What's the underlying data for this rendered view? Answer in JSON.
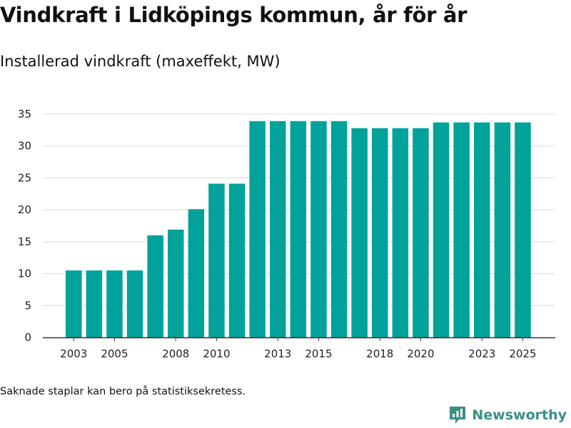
{
  "title": "Vindkraft i Lidköpings kommun, år för år",
  "subtitle": "Installerad vindkraft (maxeffekt, MW)",
  "footnote": "Saknade staplar kan bero på statistiksekretess.",
  "brand": {
    "name": "Newsworthy",
    "icon": "newsworthy-logo-icon",
    "color": "#3a8f86"
  },
  "colors": {
    "bar": "#00a29a",
    "grid": "#d9d9d9",
    "axis": "#333333"
  },
  "chart_data": {
    "type": "bar",
    "title": "Vindkraft i Lidköpings kommun, år för år",
    "subtitle": "Installerad vindkraft (maxeffekt, MW)",
    "xlabel": "",
    "ylabel": "",
    "ylim": [
      0,
      35
    ],
    "yticks": [
      0,
      5,
      10,
      15,
      20,
      25,
      30,
      35
    ],
    "grid": true,
    "categories": [
      "2003",
      "2004",
      "2005",
      "2006",
      "2007",
      "2008",
      "2009",
      "2010",
      "2011",
      "2012",
      "2013",
      "2014",
      "2015",
      "2016",
      "2017",
      "2018",
      "2019",
      "2020",
      "2021",
      "2022",
      "2023",
      "2024",
      "2025"
    ],
    "xtick_labels": [
      "2003",
      "2005",
      "2008",
      "2010",
      "2013",
      "2015",
      "2018",
      "2020",
      "2023",
      "2025"
    ],
    "values": [
      10.5,
      10.5,
      10.5,
      10.5,
      16.0,
      16.9,
      20.1,
      24.1,
      24.1,
      33.9,
      33.9,
      33.9,
      33.9,
      33.9,
      32.8,
      32.8,
      32.8,
      32.8,
      33.7,
      33.7,
      33.7,
      33.7,
      33.7
    ]
  }
}
